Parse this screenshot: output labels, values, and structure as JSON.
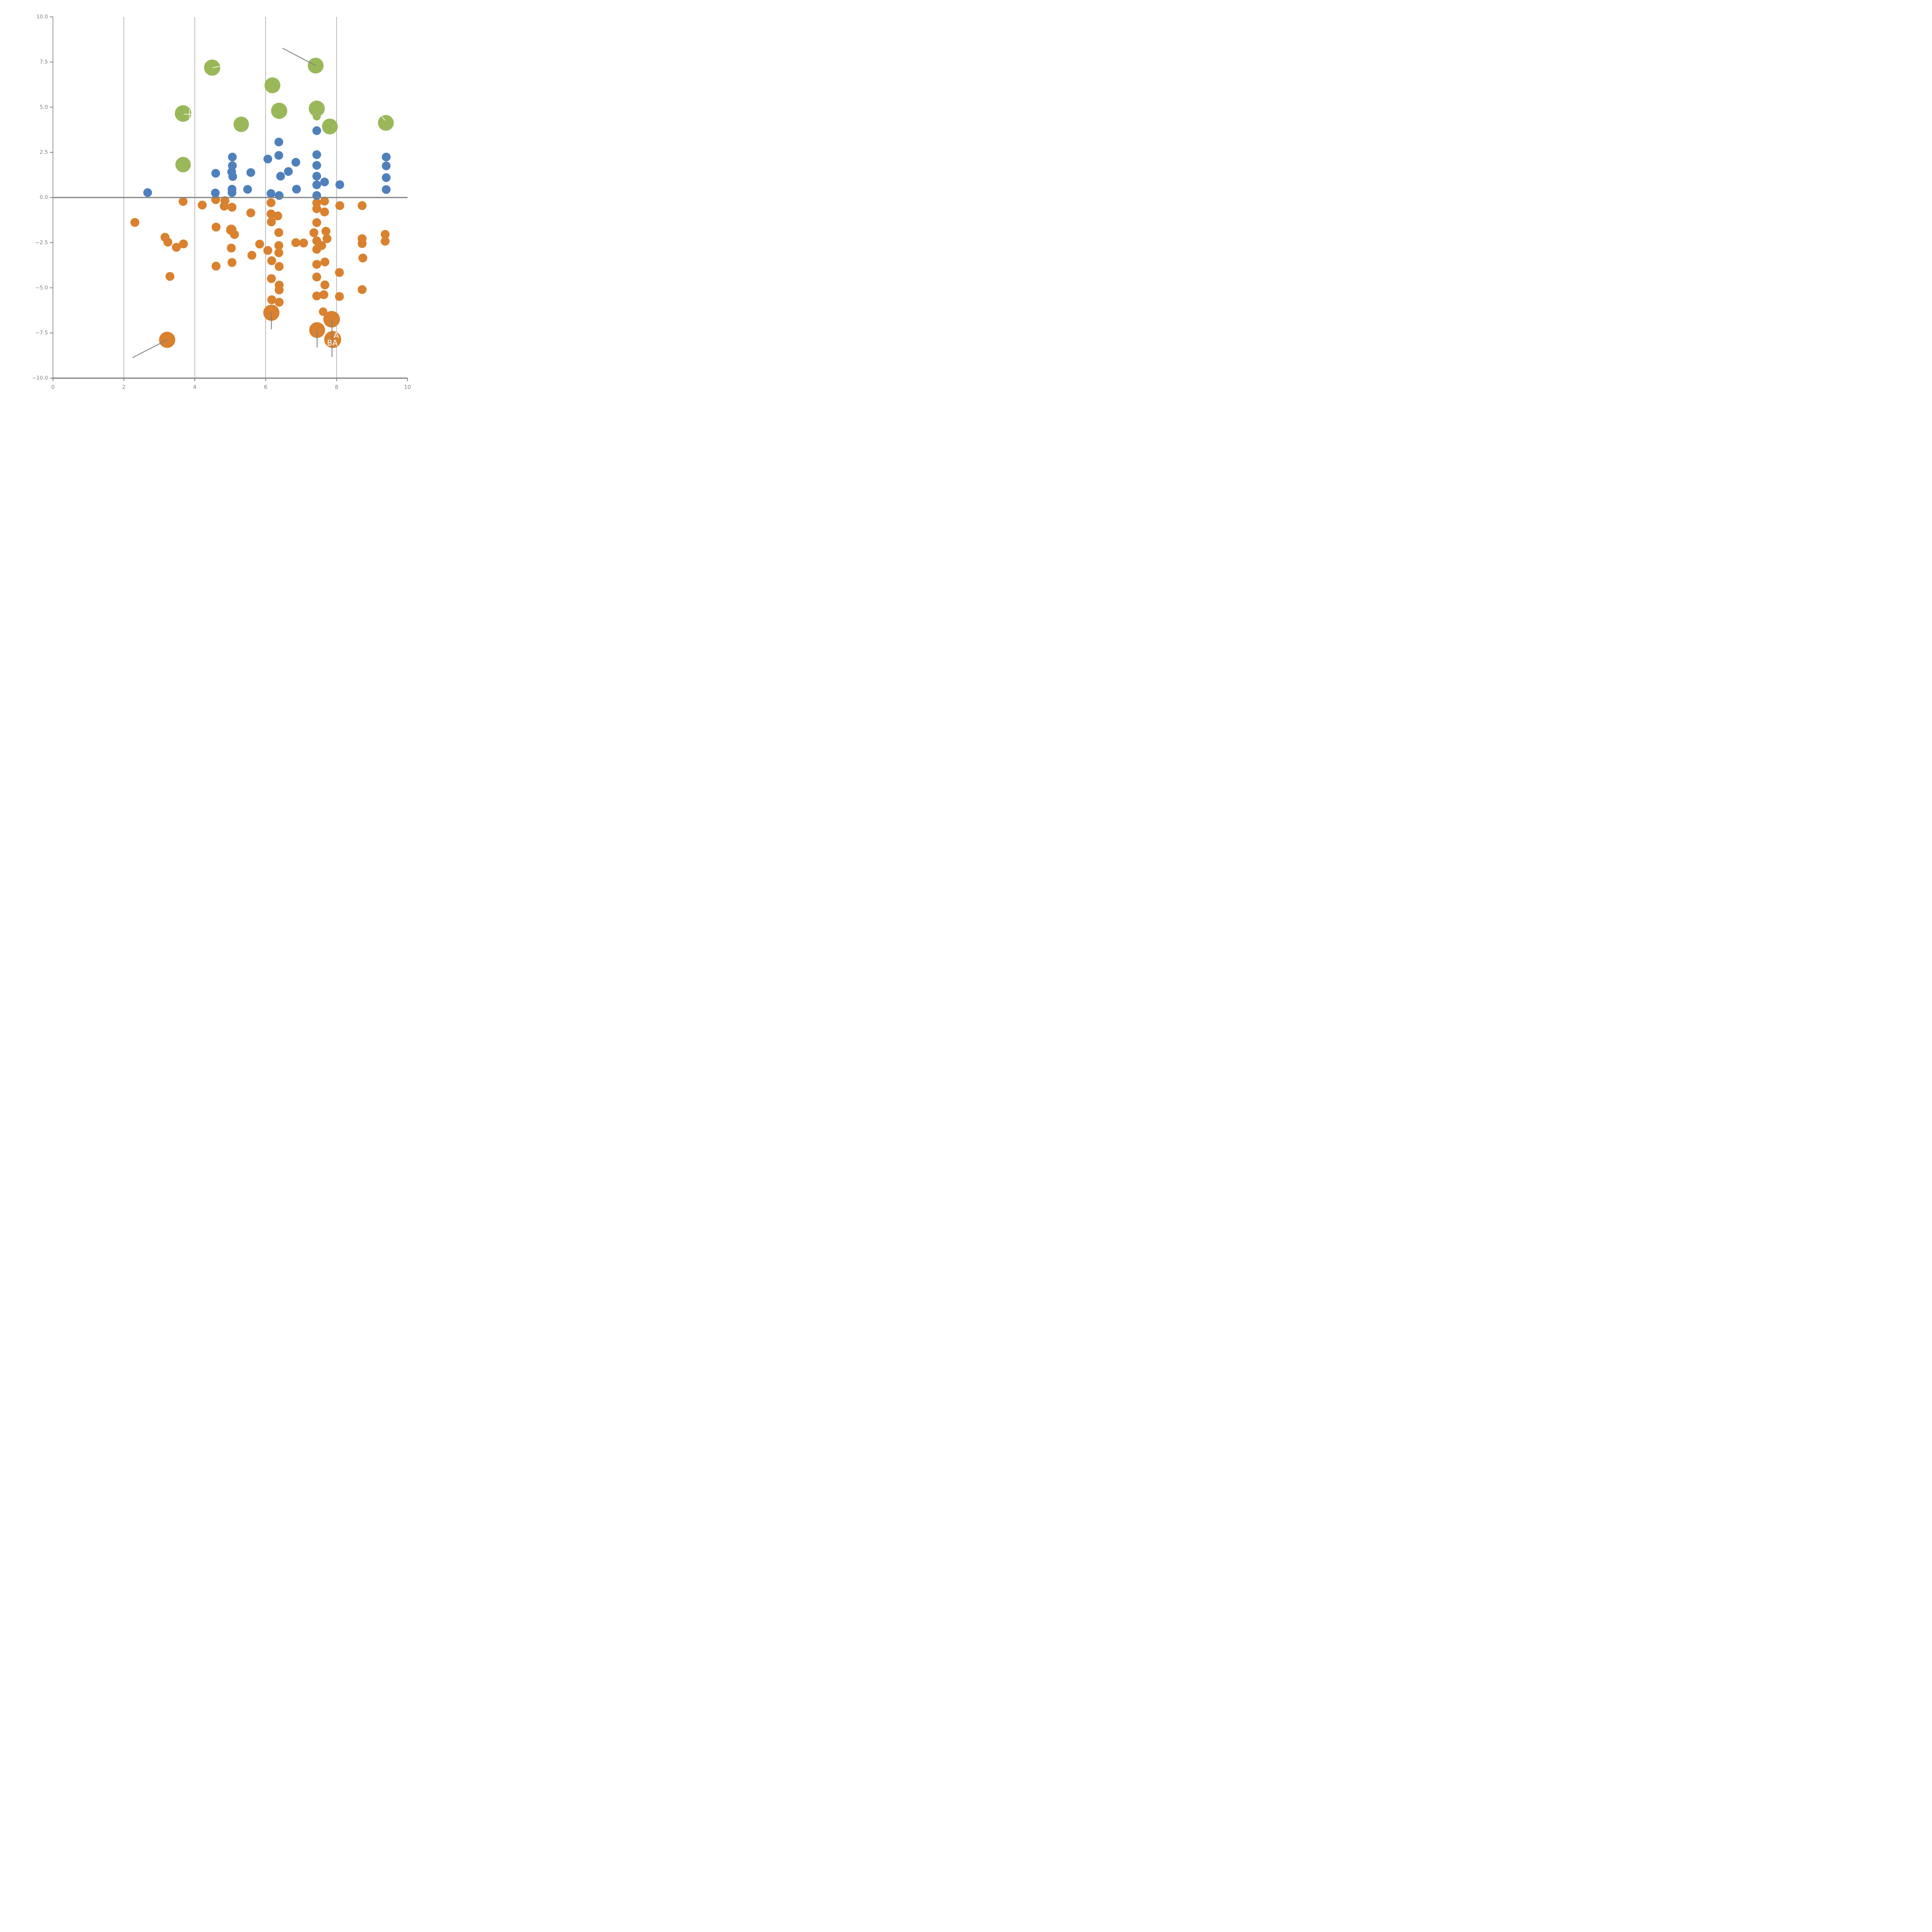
{
  "chart_data": {
    "type": "scatter",
    "title": "",
    "xlabel": "",
    "ylabel": "",
    "xlim": [
      0,
      10
    ],
    "ylim": [
      -10,
      10
    ],
    "grid": "vertical-only",
    "legend": "none",
    "xticks": {
      "values": [
        0,
        2,
        4,
        6,
        8,
        10
      ],
      "labels": [
        "0",
        "2",
        "4",
        "6",
        "8",
        "10"
      ]
    },
    "yticks": {
      "values": [
        10,
        7.5,
        5,
        2.5,
        0,
        -2.5,
        -5,
        -7.5,
        -10
      ],
      "labels": [
        "10.0",
        "7.5",
        "5.0",
        "2.5",
        "0.0",
        "−2.5",
        "−5.0",
        "−7.5",
        "−10.0"
      ]
    },
    "gridline_x_values": [
      2,
      4,
      6,
      8
    ],
    "zero_line_y": 0,
    "colors": {
      "green": "#9AB859",
      "blue": "#4E80BC",
      "orange": "#D9812E",
      "axis": "#808080",
      "tick_label": "#808080",
      "gridline": "#454545",
      "annotation_line": "#808080",
      "white_mark": "#F4F7EC",
      "point_label": "#FFFFFF"
    },
    "series": [
      {
        "name": "green",
        "color": "#9AB859",
        "default_r": 20.8,
        "points": [
          [
            4.49,
            7.19,
            21
          ],
          [
            7.41,
            7.3,
            20.5
          ],
          [
            6.19,
            6.21,
            20.5
          ],
          [
            3.67,
            4.65,
            21.5
          ],
          [
            6.38,
            4.8,
            21
          ],
          [
            7.44,
            4.92,
            20.8
          ],
          [
            7.44,
            4.49,
            10.5
          ],
          [
            5.31,
            4.05,
            20
          ],
          [
            7.81,
            3.93,
            20.5
          ],
          [
            9.39,
            4.13,
            20.5
          ],
          [
            3.67,
            1.82,
            20
          ]
        ]
      },
      {
        "name": "orange",
        "color": "#D9812E",
        "default_r": 11.5,
        "points": [
          [
            2.31,
            -1.38
          ],
          [
            3.67,
            -0.22
          ],
          [
            4.21,
            -0.42
          ],
          [
            4.59,
            -0.12
          ],
          [
            4.85,
            -0.18
          ],
          [
            4.83,
            -0.48
          ],
          [
            5.05,
            -0.54
          ],
          [
            5.58,
            -0.85
          ],
          [
            4.6,
            -1.64
          ],
          [
            5.03,
            -1.79,
            13.5
          ],
          [
            5.12,
            -2.05
          ],
          [
            3.16,
            -2.2
          ],
          [
            3.24,
            -2.47
          ],
          [
            3.68,
            -2.57
          ],
          [
            3.48,
            -2.76
          ],
          [
            3.3,
            -4.37
          ],
          [
            5.61,
            -3.2
          ],
          [
            5.83,
            -2.58
          ],
          [
            5.03,
            -2.8
          ],
          [
            5.05,
            -3.6
          ],
          [
            4.6,
            -3.8
          ],
          [
            6.06,
            -2.93
          ],
          [
            6.37,
            -2.66
          ],
          [
            6.37,
            -3.06
          ],
          [
            6.17,
            -3.5
          ],
          [
            6.38,
            -3.82
          ],
          [
            6.16,
            -4.49
          ],
          [
            6.38,
            -4.85
          ],
          [
            6.38,
            -5.12
          ],
          [
            6.17,
            -5.66
          ],
          [
            6.38,
            -5.8
          ],
          [
            6.16,
            -6.38,
            21
          ],
          [
            6.15,
            -0.29
          ],
          [
            6.15,
            -0.91
          ],
          [
            6.34,
            -1.02
          ],
          [
            6.16,
            -1.35
          ],
          [
            6.37,
            -1.94
          ],
          [
            6.85,
            -2.5
          ],
          [
            7.07,
            -2.52
          ],
          [
            7.44,
            -0.3
          ],
          [
            7.66,
            -0.2
          ],
          [
            7.44,
            -0.62
          ],
          [
            7.66,
            -0.8
          ],
          [
            7.44,
            -1.39
          ],
          [
            7.36,
            -1.95
          ],
          [
            7.7,
            -1.87
          ],
          [
            7.44,
            -2.4
          ],
          [
            7.73,
            -2.28
          ],
          [
            7.58,
            -2.66
          ],
          [
            7.44,
            -2.87
          ],
          [
            7.67,
            -3.57
          ],
          [
            7.44,
            -3.7
          ],
          [
            7.44,
            -4.4
          ],
          [
            7.67,
            -4.84
          ],
          [
            7.44,
            -5.45
          ],
          [
            7.64,
            -5.38
          ],
          [
            7.62,
            -6.32,
            11
          ],
          [
            7.86,
            -6.74,
            21.5
          ],
          [
            7.45,
            -7.34,
            20.5
          ],
          [
            7.89,
            -7.86,
            22
          ],
          [
            3.22,
            -7.88,
            21
          ],
          [
            8.09,
            -0.45
          ],
          [
            8.08,
            -4.15
          ],
          [
            8.08,
            -5.48
          ],
          [
            8.72,
            -0.45
          ],
          [
            8.72,
            -2.28
          ],
          [
            8.72,
            -2.55
          ],
          [
            8.74,
            -3.35
          ],
          [
            8.72,
            -5.1
          ],
          [
            9.37,
            -2.04
          ],
          [
            9.37,
            -2.42
          ]
        ]
      },
      {
        "name": "blue",
        "color": "#4E80BC",
        "default_r": 11.3,
        "points": [
          [
            2.67,
            0.27
          ],
          [
            4.59,
            1.34
          ],
          [
            4.58,
            0.25
          ],
          [
            5.06,
            2.24
          ],
          [
            5.06,
            1.76
          ],
          [
            5.04,
            1.42
          ],
          [
            5.07,
            1.16
          ],
          [
            5.05,
            0.46
          ],
          [
            5.05,
            0.27
          ],
          [
            5.49,
            0.45
          ],
          [
            5.58,
            1.38
          ],
          [
            6.06,
            2.13
          ],
          [
            6.37,
            3.07
          ],
          [
            6.37,
            2.33
          ],
          [
            6.42,
            1.18
          ],
          [
            6.64,
            1.44
          ],
          [
            6.15,
            0.22
          ],
          [
            6.38,
            0.11
          ],
          [
            6.85,
            1.95
          ],
          [
            6.87,
            0.46
          ],
          [
            7.44,
            3.7
          ],
          [
            7.44,
            2.37
          ],
          [
            7.44,
            1.78
          ],
          [
            7.44,
            1.18
          ],
          [
            7.66,
            0.86
          ],
          [
            7.44,
            0.7
          ],
          [
            7.44,
            0.11
          ],
          [
            8.09,
            0.71
          ],
          [
            9.4,
            2.24
          ],
          [
            9.4,
            1.75
          ],
          [
            9.4,
            1.1
          ],
          [
            9.4,
            0.44
          ]
        ]
      }
    ],
    "annotations": {
      "gray_lines": [
        {
          "x1": 6.48,
          "y1": 8.26,
          "x2": 7.41,
          "y2": 7.3
        },
        {
          "x1": 3.22,
          "y1": -7.88,
          "x2": 2.25,
          "y2": -8.86
        },
        {
          "x1": 7.45,
          "y1": -7.36,
          "x2": 7.45,
          "y2": -8.28
        },
        {
          "x1": 7.87,
          "y1": -6.8,
          "x2": 7.87,
          "y2": -8.81
        },
        {
          "x1": 6.16,
          "y1": -6.38,
          "x2": 6.16,
          "y2": -7.28
        }
      ],
      "white_marks": [
        {
          "x1": 4.51,
          "y1": 7.19,
          "x2": 4.7,
          "y2": 7.26
        },
        {
          "x1": 9.26,
          "y1": 4.54,
          "x2": 9.36,
          "y2": 4.28
        },
        {
          "x1": 3.7,
          "y1": 4.61,
          "x2": 3.92,
          "y2": 4.61
        },
        {
          "x1": 3.85,
          "y1": 4.87,
          "x2": 3.85,
          "y2": 4.36
        }
      ],
      "point_labels": [
        {
          "text": "A",
          "x": 7.99,
          "y": -7.62
        },
        {
          "text": "BA",
          "x": 7.88,
          "y": -8.05
        }
      ]
    }
  }
}
